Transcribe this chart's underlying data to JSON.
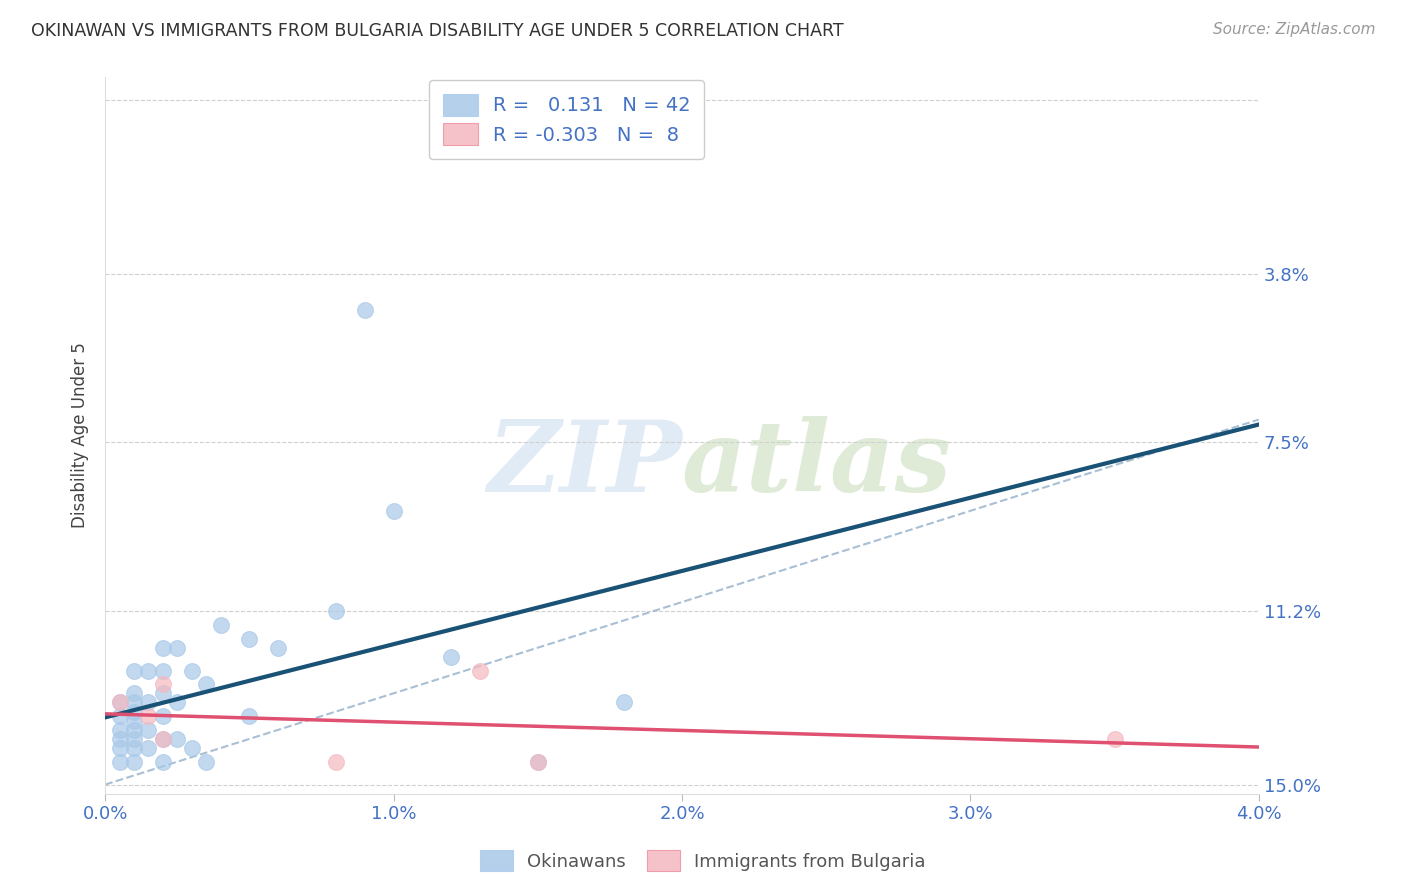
{
  "title": "OKINAWAN VS IMMIGRANTS FROM BULGARIA DISABILITY AGE UNDER 5 CORRELATION CHART",
  "source": "Source: ZipAtlas.com",
  "xlabel_ticks": [
    "0.0%",
    "1.0%",
    "2.0%",
    "3.0%",
    "4.0%"
  ],
  "ylabel_ticks": [
    "15.0%",
    "11.2%",
    "7.5%",
    "3.8%",
    ""
  ],
  "ylabel_label": "Disability Age Under 5",
  "xlim": [
    0.0,
    0.04
  ],
  "ylim": [
    -0.002,
    0.155
  ],
  "okinawan_R": 0.131,
  "okinawan_N": 42,
  "bulgaria_R": -0.303,
  "bulgaria_N": 8,
  "okinawan_color": "#a8c8e8",
  "bulgaria_color": "#f4b8c0",
  "okinawan_line_color": "#1a5276",
  "bulgaria_line_color": "#e05070",
  "dash_line_color": "#a0b8d0",
  "background_color": "#ffffff",
  "grid_color": "#d0d0d0",
  "okinawan_x": [
    0.0005,
    0.0005,
    0.0005,
    0.0005,
    0.0005,
    0.0005,
    0.001,
    0.001,
    0.001,
    0.001,
    0.001,
    0.001,
    0.001,
    0.001,
    0.001,
    0.0015,
    0.0015,
    0.0015,
    0.0015,
    0.002,
    0.002,
    0.002,
    0.002,
    0.002,
    0.002,
    0.0025,
    0.0025,
    0.0025,
    0.003,
    0.003,
    0.0035,
    0.0035,
    0.004,
    0.005,
    0.005,
    0.006,
    0.008,
    0.009,
    0.01,
    0.012,
    0.015,
    0.018
  ],
  "okinawan_y": [
    0.005,
    0.008,
    0.01,
    0.012,
    0.015,
    0.018,
    0.005,
    0.008,
    0.01,
    0.012,
    0.014,
    0.016,
    0.018,
    0.02,
    0.025,
    0.008,
    0.012,
    0.018,
    0.025,
    0.005,
    0.01,
    0.015,
    0.02,
    0.025,
    0.03,
    0.01,
    0.018,
    0.03,
    0.008,
    0.025,
    0.005,
    0.022,
    0.035,
    0.015,
    0.032,
    0.03,
    0.038,
    0.104,
    0.06,
    0.028,
    0.005,
    0.018
  ],
  "bulgaria_x": [
    0.0005,
    0.0015,
    0.002,
    0.002,
    0.008,
    0.013,
    0.015,
    0.035
  ],
  "bulgaria_y": [
    0.018,
    0.015,
    0.022,
    0.01,
    0.005,
    0.025,
    0.005,
    0.01
  ],
  "watermark_zip": "ZIP",
  "watermark_atlas": "atlas",
  "legend_label_okinawan": "Okinawans",
  "legend_label_bulgaria": "Immigrants from Bulgaria"
}
